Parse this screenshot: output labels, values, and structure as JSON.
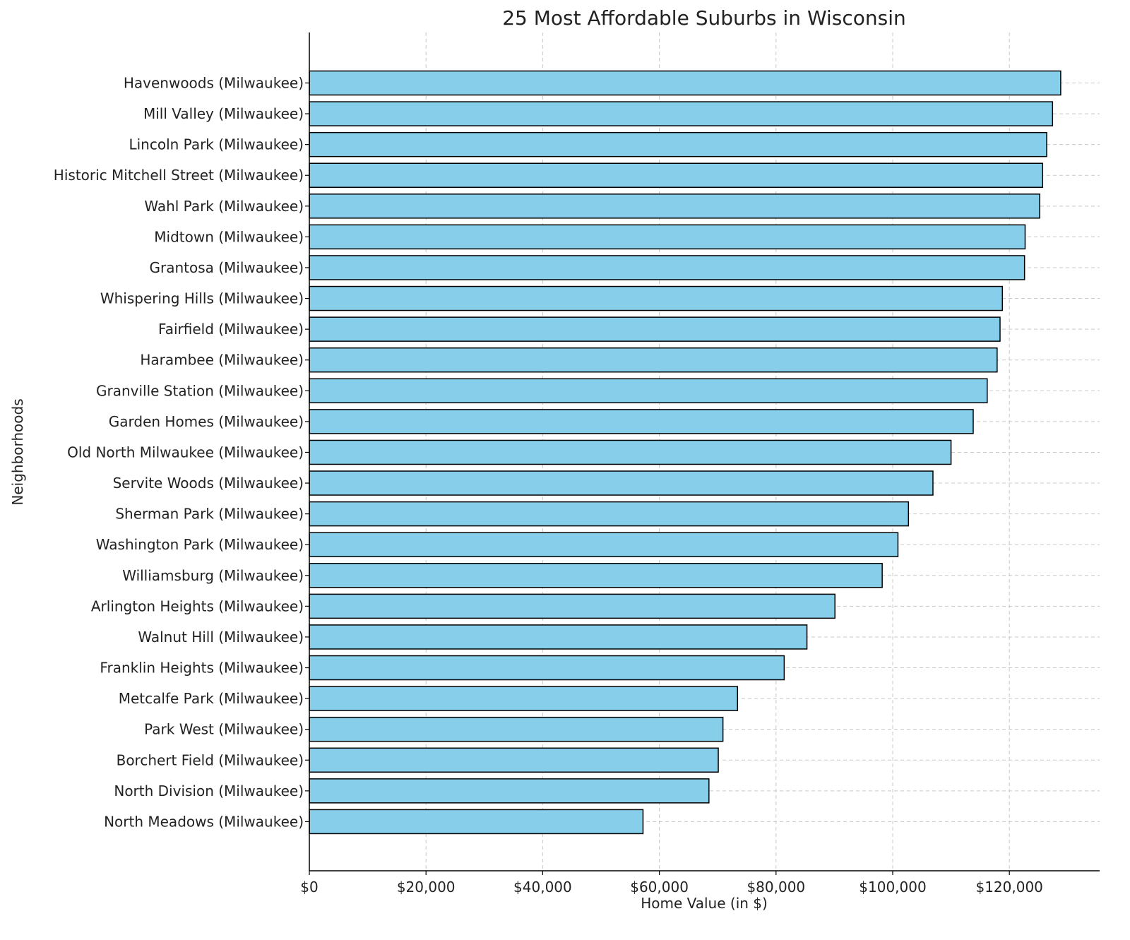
{
  "chart_data": {
    "type": "bar",
    "orientation": "horizontal",
    "title": "25 Most Affordable Suburbs in Wisconsin",
    "xlabel": "Home Value (in $)",
    "ylabel": "Neighborhoods",
    "xlim": [
      0,
      135000
    ],
    "xticks": [
      0,
      20000,
      40000,
      60000,
      80000,
      100000,
      120000
    ],
    "xtick_labels": [
      "$0",
      "$20,000",
      "$40,000",
      "$60,000",
      "$80,000",
      "$100,000",
      "$120,000"
    ],
    "grid": true,
    "bar_color": "#87CEEB",
    "edge_color": "#000000",
    "categories": [
      "Havenwoods (Milwaukee)",
      "Mill Valley (Milwaukee)",
      "Lincoln Park (Milwaukee)",
      "Historic Mitchell Street (Milwaukee)",
      "Wahl Park (Milwaukee)",
      "Midtown (Milwaukee)",
      "Grantosa (Milwaukee)",
      "Whispering Hills (Milwaukee)",
      "Fairfield (Milwaukee)",
      "Harambee (Milwaukee)",
      "Granville Station (Milwaukee)",
      "Garden Homes (Milwaukee)",
      "Old North Milwaukee (Milwaukee)",
      "Servite Woods (Milwaukee)",
      "Sherman Park (Milwaukee)",
      "Washington Park (Milwaukee)",
      "Williamsburg (Milwaukee)",
      "Arlington Heights (Milwaukee)",
      "Walnut Hill (Milwaukee)",
      "Franklin Heights (Milwaukee)",
      "Metcalfe Park (Milwaukee)",
      "Park West (Milwaukee)",
      "Borchert Field (Milwaukee)",
      "North Division (Milwaukee)",
      "North Meadows (Milwaukee)"
    ],
    "values": [
      128800,
      127400,
      126400,
      125700,
      125200,
      122700,
      122600,
      118800,
      118400,
      117900,
      116200,
      113800,
      110000,
      106900,
      102700,
      100900,
      98200,
      90100,
      85300,
      81400,
      73400,
      70900,
      70100,
      68500,
      57200
    ]
  }
}
